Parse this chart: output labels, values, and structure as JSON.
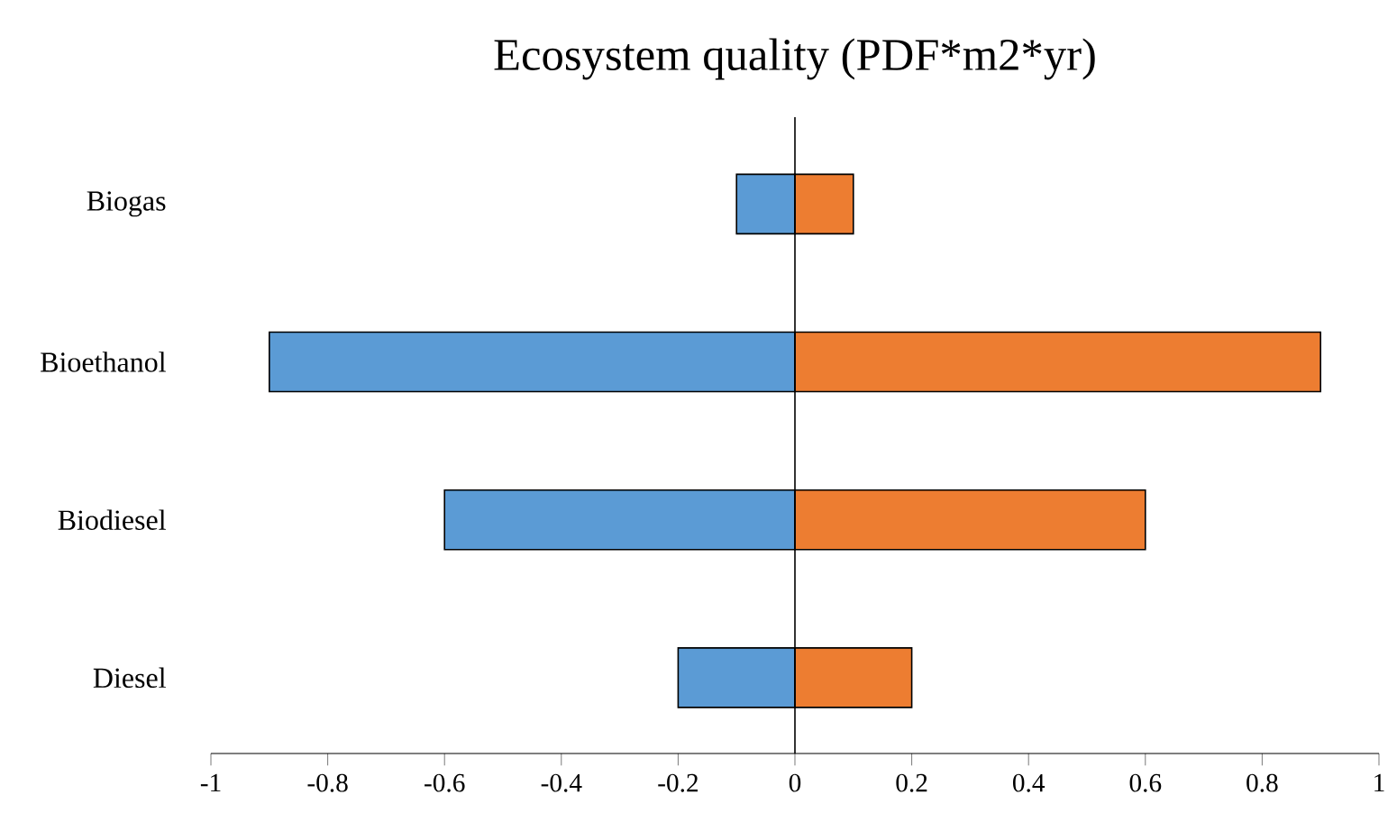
{
  "chart_data": {
    "type": "bar",
    "title": "Ecosystem quality (PDF*m2*yr)",
    "orientation": "horizontal",
    "stacked": true,
    "categories": [
      "Biogas",
      "Bioethanol",
      "Biodiesel",
      "Diesel"
    ],
    "series": [
      {
        "color": "#5b9bd5",
        "values": [
          -0.1,
          -0.9,
          -0.6,
          -0.2
        ]
      },
      {
        "color": "#ed7d31",
        "values": [
          0.1,
          0.9,
          0.6,
          0.2
        ]
      }
    ],
    "xlim": [
      -1,
      1
    ],
    "xticks": [
      -1,
      -0.8,
      -0.6,
      -0.4,
      -0.2,
      0,
      0.2,
      0.4,
      0.6,
      0.8,
      1
    ]
  }
}
